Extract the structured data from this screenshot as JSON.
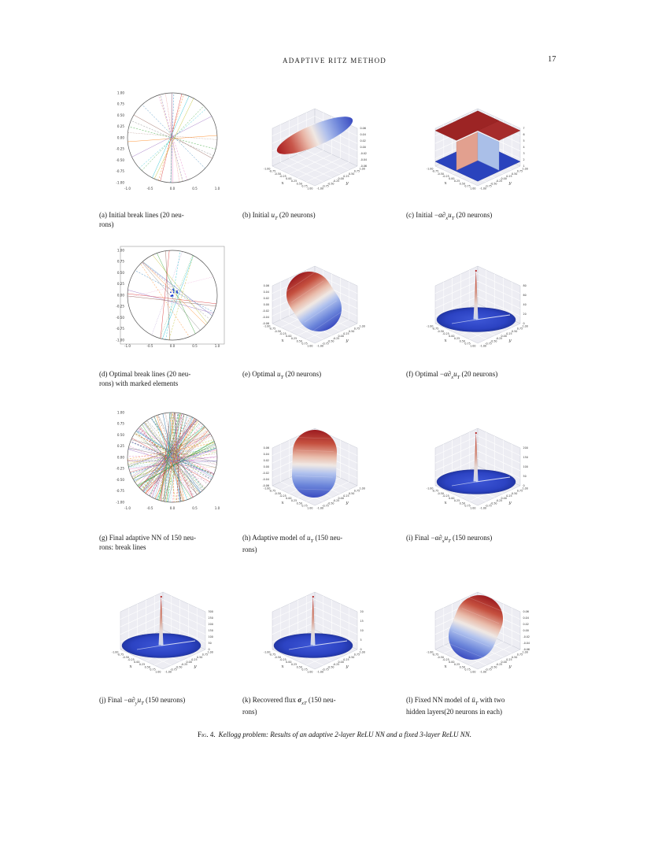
{
  "page": {
    "running_head": "ADAPTIVE RITZ METHOD",
    "page_number": "17",
    "figure": {
      "label": "Fig. 4.",
      "caption": "Kellogg problem: Results of an adaptive 2-layer ReLU NN and a fixed 3-layer ReLU NN."
    }
  },
  "palette": [
    "#1f77b4",
    "#ff7f0e",
    "#2ca02c",
    "#d62728",
    "#9467bd",
    "#8c564b",
    "#e377c2",
    "#7f7f7f",
    "#bcbd22",
    "#17becf"
  ],
  "subfigures": [
    {
      "id": "a",
      "caption": [
        {
          "s": "t",
          "v": "(a) Initial break lines (20 neu-"
        },
        {
          "s": "br",
          "v": ""
        },
        {
          "s": "t",
          "v": "rons)"
        }
      ],
      "plot": {
        "type": "breaklines",
        "n_lines": 20,
        "seed": 11,
        "spread": 5,
        "frame": false,
        "cluster": false,
        "x_ticks": [
          "-1.0",
          "-0.5",
          "0.0",
          "0.5",
          "1.0"
        ],
        "y_ticks": [
          "1.00",
          "0.75",
          "0.50",
          "0.25",
          "0.00",
          "-0.25",
          "-0.50",
          "-0.75",
          "-1.00"
        ]
      }
    },
    {
      "id": "b",
      "caption": [
        {
          "s": "t",
          "v": "(b) Initial "
        },
        {
          "s": "i",
          "v": "u"
        },
        {
          "s": "sub",
          "v": "T"
        },
        {
          "s": "t",
          "v": " (20 neurons)"
        }
      ],
      "plot": {
        "type": "surface3d",
        "subtype": "tilted-disk",
        "x_ticks": [
          "-1.00",
          "-0.75",
          "-0.50",
          "-0.25",
          "0.00",
          "0.25",
          "0.50",
          "0.75",
          "1.00"
        ],
        "y_ticks": [
          "-1.00",
          "-0.75",
          "-0.50",
          "-0.25",
          "0.00",
          "0.25",
          "0.50",
          "0.75",
          "1.00"
        ],
        "z_ticks": [
          "-0.06",
          "-0.04",
          "-0.02",
          "0.00",
          "0.02",
          "0.04",
          "0.06"
        ],
        "z_side": "right",
        "xlabel": "x",
        "ylabel": "y"
      }
    },
    {
      "id": "c",
      "caption": [
        {
          "s": "t",
          "v": "(c) Initial −"
        },
        {
          "s": "i",
          "v": "α∂"
        },
        {
          "s": "sub",
          "v": "x"
        },
        {
          "s": "i",
          "v": "u"
        },
        {
          "s": "sub",
          "v": "T"
        },
        {
          "s": "t",
          "v": " (20 neurons)"
        }
      ],
      "plot": {
        "type": "surface3d",
        "subtype": "slabs",
        "x_ticks": [
          "-1.00",
          "-0.75",
          "-0.50",
          "-0.25",
          "0.00",
          "0.25",
          "0.50",
          "0.75",
          "1.00"
        ],
        "y_ticks": [
          "-1.00",
          "-0.75",
          "-0.50",
          "-0.25",
          "0.00",
          "0.25",
          "0.50",
          "0.75",
          "1.00"
        ],
        "z_ticks": [
          "1",
          "2",
          "3",
          "4",
          "5",
          "6",
          "7"
        ],
        "z_side": "right",
        "xlabel": "x",
        "ylabel": "y"
      }
    },
    {
      "id": "d",
      "caption": [
        {
          "s": "t",
          "v": "(d) Optimal break lines (20 neu-"
        },
        {
          "s": "br",
          "v": ""
        },
        {
          "s": "t",
          "v": "rons) with marked elements"
        }
      ],
      "plot": {
        "type": "breaklines",
        "n_lines": 20,
        "seed": 29,
        "spread": 30,
        "frame": true,
        "cluster": true,
        "x_ticks": [
          "-1.0",
          "-0.5",
          "0.0",
          "0.5",
          "1.0"
        ],
        "y_ticks": [
          "1.00",
          "0.75",
          "0.50",
          "0.25",
          "0.00",
          "-0.25",
          "-0.50",
          "-0.75",
          "-1.00"
        ]
      }
    },
    {
      "id": "e",
      "caption": [
        {
          "s": "t",
          "v": "(e) Optimal "
        },
        {
          "s": "i",
          "v": "u"
        },
        {
          "s": "sub",
          "v": "T"
        },
        {
          "s": "t",
          "v": " (20 neurons)"
        }
      ],
      "plot": {
        "type": "surface3d",
        "subtype": "step",
        "variant": "diag",
        "x_ticks": [
          "-1.00",
          "-0.75",
          "-0.50",
          "-0.25",
          "0.00",
          "0.25",
          "0.50",
          "0.75",
          "1.00"
        ],
        "y_ticks": [
          "-1.00",
          "-0.75",
          "-0.50",
          "-0.25",
          "0.00",
          "0.25",
          "0.50",
          "0.75",
          "1.00"
        ],
        "z_ticks": [
          "-0.06",
          "-0.04",
          "-0.02",
          "0.00",
          "0.02",
          "0.04",
          "0.06"
        ],
        "z_side": "left",
        "xlabel": "x",
        "ylabel": "y"
      }
    },
    {
      "id": "f",
      "caption": [
        {
          "s": "t",
          "v": "(f) Optimal −"
        },
        {
          "s": "i",
          "v": "α∂"
        },
        {
          "s": "sub",
          "v": "x"
        },
        {
          "s": "i",
          "v": "u"
        },
        {
          "s": "sub",
          "v": "T"
        },
        {
          "s": "t",
          "v": " (20 neurons)"
        }
      ],
      "plot": {
        "type": "surface3d",
        "subtype": "spike",
        "x_ticks": [
          "-1.00",
          "-0.75",
          "-0.50",
          "-0.25",
          "0.00",
          "0.25",
          "0.50",
          "0.75",
          "1.00"
        ],
        "y_ticks": [
          "-1.00",
          "-0.75",
          "-0.50",
          "-0.25",
          "0.00",
          "0.25",
          "0.50",
          "0.75",
          "1.00"
        ],
        "z_ticks": [
          "0",
          "20",
          "40",
          "60",
          "80"
        ],
        "z_side": "right",
        "xlabel": "x",
        "ylabel": "y"
      }
    },
    {
      "id": "g",
      "caption": [
        {
          "s": "t",
          "v": "(g) Final adaptive NN of 150 neu-"
        },
        {
          "s": "br",
          "v": ""
        },
        {
          "s": "t",
          "v": "rons: break lines"
        }
      ],
      "plot": {
        "type": "breaklines",
        "n_lines": 150,
        "seed": 7,
        "spread": 20,
        "frame": false,
        "cluster": false,
        "x_ticks": [
          "-1.0",
          "-0.5",
          "0.0",
          "0.5",
          "1.0"
        ],
        "y_ticks": [
          "1.00",
          "0.75",
          "0.50",
          "0.25",
          "0.00",
          "-0.25",
          "-0.50",
          "-0.75",
          "-1.00"
        ]
      }
    },
    {
      "id": "h",
      "caption": [
        {
          "s": "t",
          "v": "(h) Adaptive model of "
        },
        {
          "s": "i",
          "v": "u"
        },
        {
          "s": "sub",
          "v": "T"
        },
        {
          "s": "t",
          "v": " (150 neu-"
        },
        {
          "s": "br",
          "v": ""
        },
        {
          "s": "t",
          "v": "rons)"
        }
      ],
      "plot": {
        "type": "surface3d",
        "subtype": "step",
        "variant": "vert",
        "x_ticks": [
          "-1.00",
          "-0.75",
          "-0.50",
          "-0.25",
          "0.00",
          "0.25",
          "0.50",
          "0.75",
          "1.00"
        ],
        "y_ticks": [
          "-1.00",
          "-0.75",
          "-0.50",
          "-0.25",
          "0.00",
          "0.25",
          "0.50",
          "0.75",
          "1.00"
        ],
        "z_ticks": [
          "-0.06",
          "-0.04",
          "-0.02",
          "0.00",
          "0.02",
          "0.04",
          "0.06"
        ],
        "z_side": "left",
        "xlabel": "x",
        "ylabel": "y"
      }
    },
    {
      "id": "i",
      "caption": [
        {
          "s": "t",
          "v": "(i) Final −"
        },
        {
          "s": "i",
          "v": "α∂"
        },
        {
          "s": "sub",
          "v": "x"
        },
        {
          "s": "i",
          "v": "u"
        },
        {
          "s": "sub",
          "v": "T"
        },
        {
          "s": "t",
          "v": " (150 neurons)"
        }
      ],
      "plot": {
        "type": "surface3d",
        "subtype": "spike",
        "x_ticks": [
          "-1.00",
          "-0.75",
          "-0.50",
          "-0.25",
          "0.00",
          "0.25",
          "0.50",
          "0.75",
          "1.00"
        ],
        "y_ticks": [
          "-1.00",
          "-0.75",
          "-0.50",
          "-0.25",
          "0.00",
          "0.25",
          "0.50",
          "0.75",
          "1.00"
        ],
        "z_ticks": [
          "0",
          "50",
          "100",
          "150",
          "200"
        ],
        "z_side": "right",
        "xlabel": "x",
        "ylabel": "y"
      }
    },
    {
      "id": "j",
      "caption": [
        {
          "s": "t",
          "v": "(j) Final −"
        },
        {
          "s": "i",
          "v": "α∂"
        },
        {
          "s": "sub",
          "v": "y"
        },
        {
          "s": "i",
          "v": "u"
        },
        {
          "s": "sub",
          "v": "T"
        },
        {
          "s": "t",
          "v": " (150 neurons)"
        }
      ],
      "plot": {
        "type": "surface3d",
        "subtype": "spike",
        "x_ticks": [
          "-1.00",
          "-0.75",
          "-0.50",
          "-0.25",
          "0.00",
          "0.25",
          "0.50",
          "0.75",
          "1.00"
        ],
        "y_ticks": [
          "-1.00",
          "-0.75",
          "-0.50",
          "-0.25",
          "0.00",
          "0.25",
          "0.50",
          "0.75",
          "1.00"
        ],
        "z_ticks": [
          "0",
          "50",
          "100",
          "150",
          "200",
          "250",
          "300"
        ],
        "z_side": "right",
        "xlabel": "x",
        "ylabel": "y"
      }
    },
    {
      "id": "k",
      "caption": [
        {
          "s": "t",
          "v": "(k) Recovered flux "
        },
        {
          "s": "bi",
          "v": "σ"
        },
        {
          "s": "sub",
          "v": "xT"
        },
        {
          "s": "t",
          "v": " (150 neu-"
        },
        {
          "s": "br",
          "v": ""
        },
        {
          "s": "t",
          "v": "rons)"
        }
      ],
      "plot": {
        "type": "surface3d",
        "subtype": "spike",
        "x_ticks": [
          "-1.00",
          "-0.75",
          "-0.50",
          "-0.25",
          "0.00",
          "0.25",
          "0.50",
          "0.75",
          "1.00"
        ],
        "y_ticks": [
          "-1.00",
          "-0.75",
          "-0.50",
          "-0.25",
          "0.00",
          "0.25",
          "0.50",
          "0.75",
          "1.00"
        ],
        "z_ticks": [
          "0",
          "5",
          "10",
          "15",
          "20"
        ],
        "z_side": "right",
        "xlabel": "x",
        "ylabel": "y"
      }
    },
    {
      "id": "l",
      "caption": [
        {
          "s": "t",
          "v": "(l) Fixed NN model of "
        },
        {
          "s": "i",
          "v": "ū"
        },
        {
          "s": "sub",
          "v": "T"
        },
        {
          "s": "t",
          "v": " with two"
        },
        {
          "s": "br",
          "v": ""
        },
        {
          "s": "t",
          "v": "hidden layers(20 neurons in each)"
        }
      ],
      "plot": {
        "type": "surface3d",
        "subtype": "step",
        "variant": "diag2",
        "x_ticks": [
          "-1.00",
          "-0.75",
          "-0.50",
          "-0.25",
          "0.00",
          "0.25",
          "0.50",
          "0.75",
          "1.00"
        ],
        "y_ticks": [
          "-1.00",
          "-0.75",
          "-0.50",
          "-0.25",
          "0.00",
          "0.25",
          "0.50",
          "0.75",
          "1.00"
        ],
        "z_ticks": [
          "-0.06",
          "-0.04",
          "-0.02",
          "0.00",
          "0.02",
          "0.04",
          "0.06"
        ],
        "z_side": "right",
        "xlabel": "x",
        "ylabel": "y"
      }
    }
  ]
}
